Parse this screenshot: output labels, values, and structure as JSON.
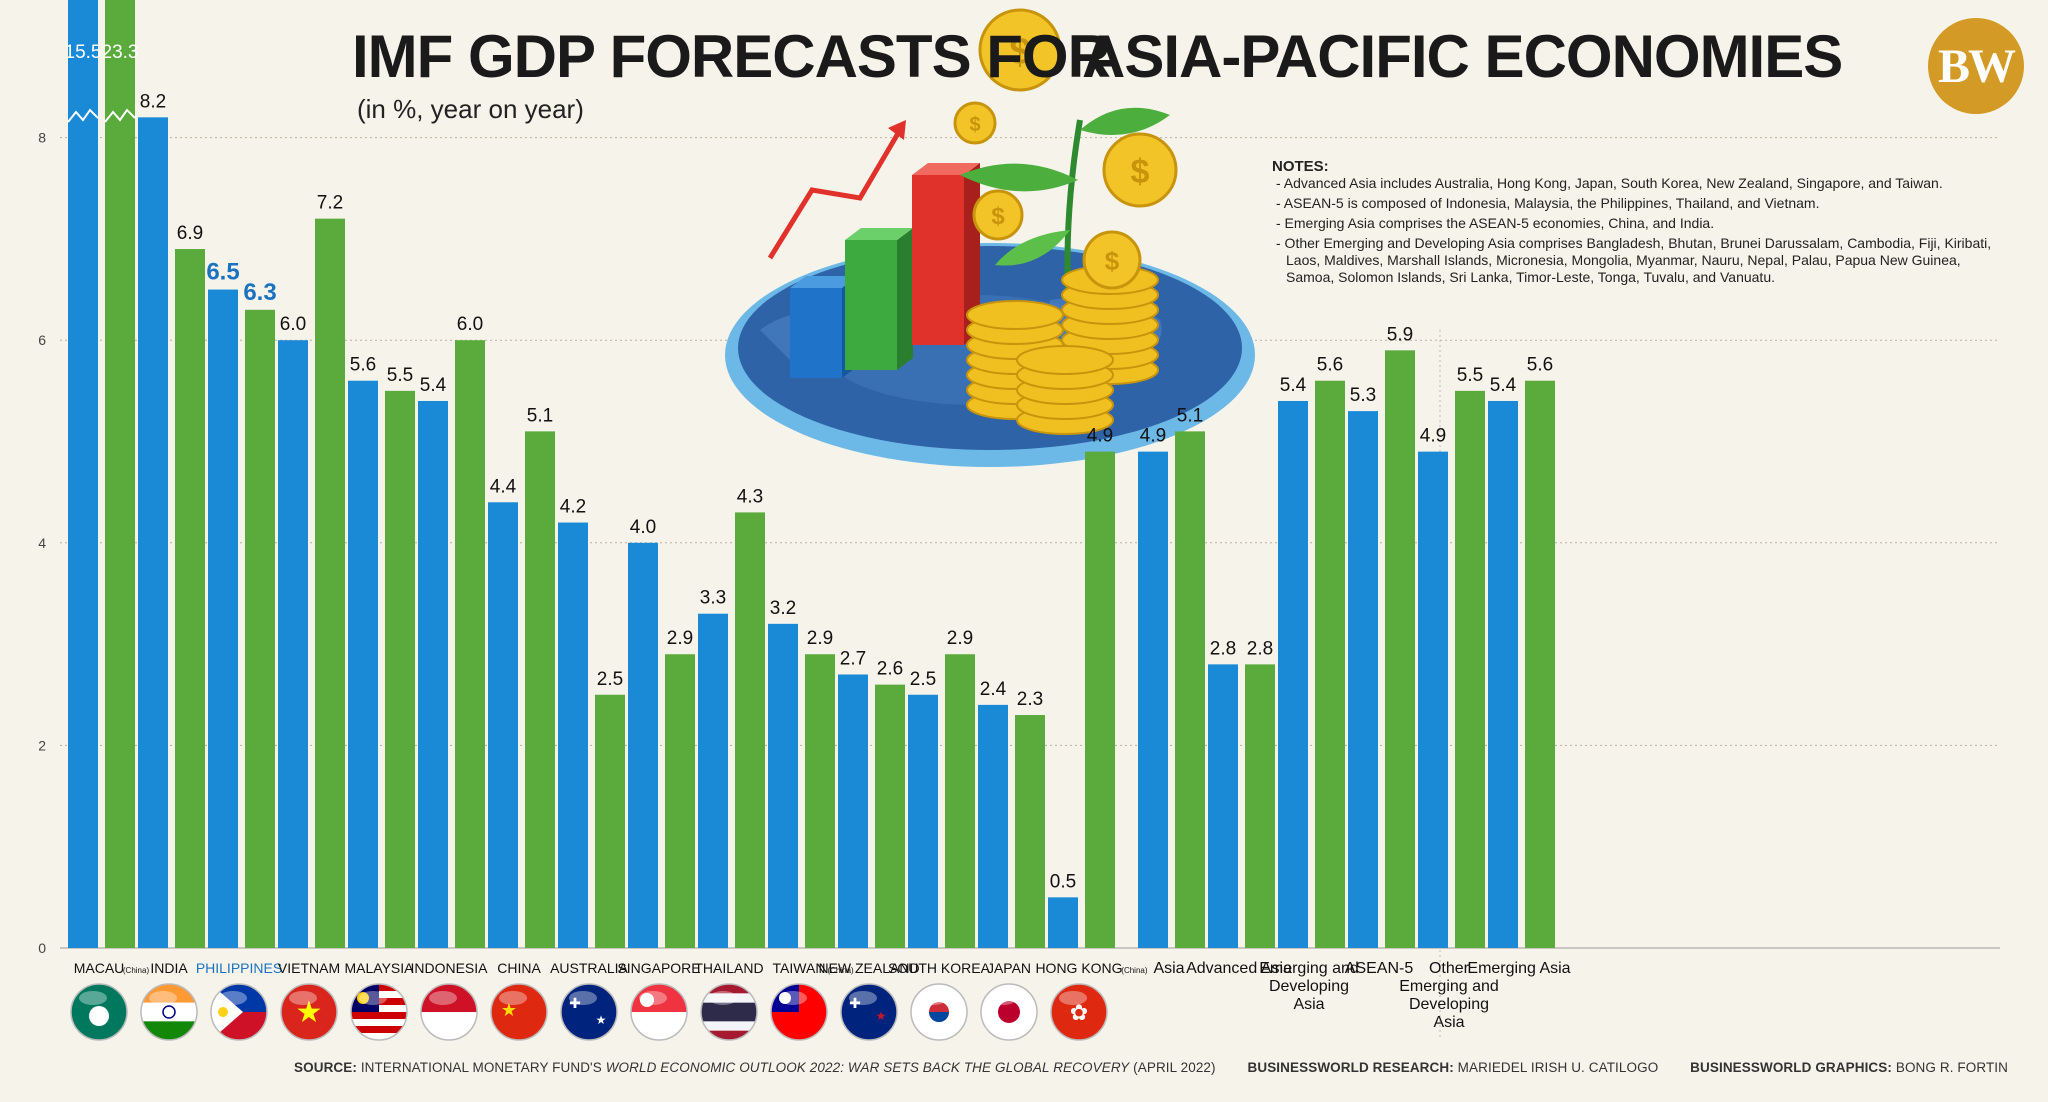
{
  "header": {
    "title_part1": "IMF GDP FORECASTS FOR",
    "title_part2": "ASIA-PACIFIC ECONOMIES",
    "subtitle": "(in %, year on year)",
    "logo": "BW"
  },
  "notes": {
    "title": "NOTES:",
    "items": [
      "- Advanced Asia includes Australia, Hong Kong, Japan, South Korea, New Zealand, Singapore, and Taiwan.",
      "- ASEAN-5 is composed of Indonesia, Malaysia, the Philippines, Thailand, and Vietnam.",
      "- Emerging Asia comprises the ASEAN-5 economies, China, and India.",
      "- Other Emerging and Developing Asia comprises Bangladesh, Bhutan, Brunei Darussalam, Cambodia, Fiji, Kiribati, Laos, Maldives, Marshall Islands, Micronesia, Mongolia, Myanmar, Nauru, Nepal, Palau, Papua New Guinea, Samoa, Solomon Islands, Sri Lanka, Timor-Leste, Tonga, Tuvalu, and Vanuatu."
    ]
  },
  "footer": {
    "source_label": "SOURCE:",
    "source_text_1": "INTERNATIONAL MONETARY FUND'S",
    "source_italic": "WORLD ECONOMIC OUTLOOK 2022: WAR SETS BACK THE GLOBAL RECOVERY",
    "source_text_2": "(APRIL 2022)",
    "research_label": "BUSINESSWORLD RESEARCH:",
    "research_name": "MARIEDEL IRISH U. CATILOGO",
    "graphics_label": "BUSINESSWORLD GRAPHICS:",
    "graphics_name": "BONG R. FORTIN"
  },
  "colors": {
    "blue_series": "#1a8ad6",
    "green_series": "#5aab3c",
    "highlight": "#1b72c0",
    "background": "#f6f3ea",
    "logo": "#d39a25"
  },
  "chart_data": {
    "type": "bar",
    "title": "IMF GDP FORECASTS FOR ASIA-PACIFIC ECONOMIES",
    "subtitle": "(in %, year on year)",
    "ylim": [
      0,
      9
    ],
    "y_ticks": [
      "0",
      "2",
      "4",
      "6",
      "8"
    ],
    "y_axis_break": true,
    "grid": true,
    "legend": "none",
    "categories": [
      "MACAU",
      "INDIA",
      "PHILIPPINES",
      "VIETNAM",
      "MALAYSIA",
      "INDONESIA",
      "CHINA",
      "AUSTRALIA",
      "SINGAPORE",
      "THAILAND",
      "TAIWAN",
      "NEW ZEALAND",
      "SOUTH KOREA",
      "JAPAN",
      "HONG KONG",
      "Asia",
      "Advanced Asia",
      "Emerging and Developing Asia",
      "ASEAN-5",
      "Other Emerging and Developing Asia",
      "Emerging Asia"
    ],
    "category_notes": [
      "(China)",
      "",
      "",
      "",
      "",
      "",
      "",
      "",
      "",
      "",
      "(China)",
      "",
      "",
      "",
      "(China)",
      "",
      "",
      "",
      "",
      "",
      ""
    ],
    "highlight_category": "PHILIPPINES",
    "series": [
      {
        "values": [
          15.5,
          8.2,
          6.5,
          6.0,
          5.6,
          5.4,
          4.4,
          4.2,
          4.0,
          3.3,
          3.2,
          2.7,
          2.5,
          2.4,
          0.5,
          4.9,
          2.8,
          5.4,
          5.3,
          4.9,
          5.4
        ]
      },
      {
        "values": [
          23.3,
          6.9,
          6.3,
          7.2,
          5.5,
          6.0,
          5.1,
          2.5,
          2.9,
          4.3,
          2.9,
          2.6,
          2.9,
          2.3,
          4.9,
          5.1,
          2.8,
          5.6,
          5.9,
          5.5,
          5.6
        ]
      }
    ],
    "data_labels": [
      [
        "15.5",
        "8.2",
        "6.5",
        "6.0",
        "5.6",
        "5.4",
        "4.4",
        "4.2",
        "4.0",
        "3.3",
        "3.2",
        "2.7",
        "2.5",
        "2.4",
        "0.5",
        "4.9",
        "2.8",
        "5.4",
        "5.3",
        "4.9",
        "5.4"
      ],
      [
        "23.3",
        "6.9",
        "6.3",
        "7.2",
        "5.5",
        "6.0",
        "5.1",
        "2.5",
        "2.9",
        "4.3",
        "2.9",
        "2.6",
        "2.9",
        "2.3",
        "4.9",
        "5.1",
        "2.8",
        "5.6",
        "5.9",
        "5.5",
        "5.6"
      ]
    ],
    "flags": [
      "macau",
      "india",
      "philippines",
      "vietnam",
      "malaysia",
      "indonesia",
      "china",
      "australia",
      "singapore",
      "thailand",
      "taiwan",
      "new-zealand",
      "south-korea",
      "japan",
      "hong-kong",
      "",
      "",
      "",
      "",
      "",
      ""
    ]
  }
}
